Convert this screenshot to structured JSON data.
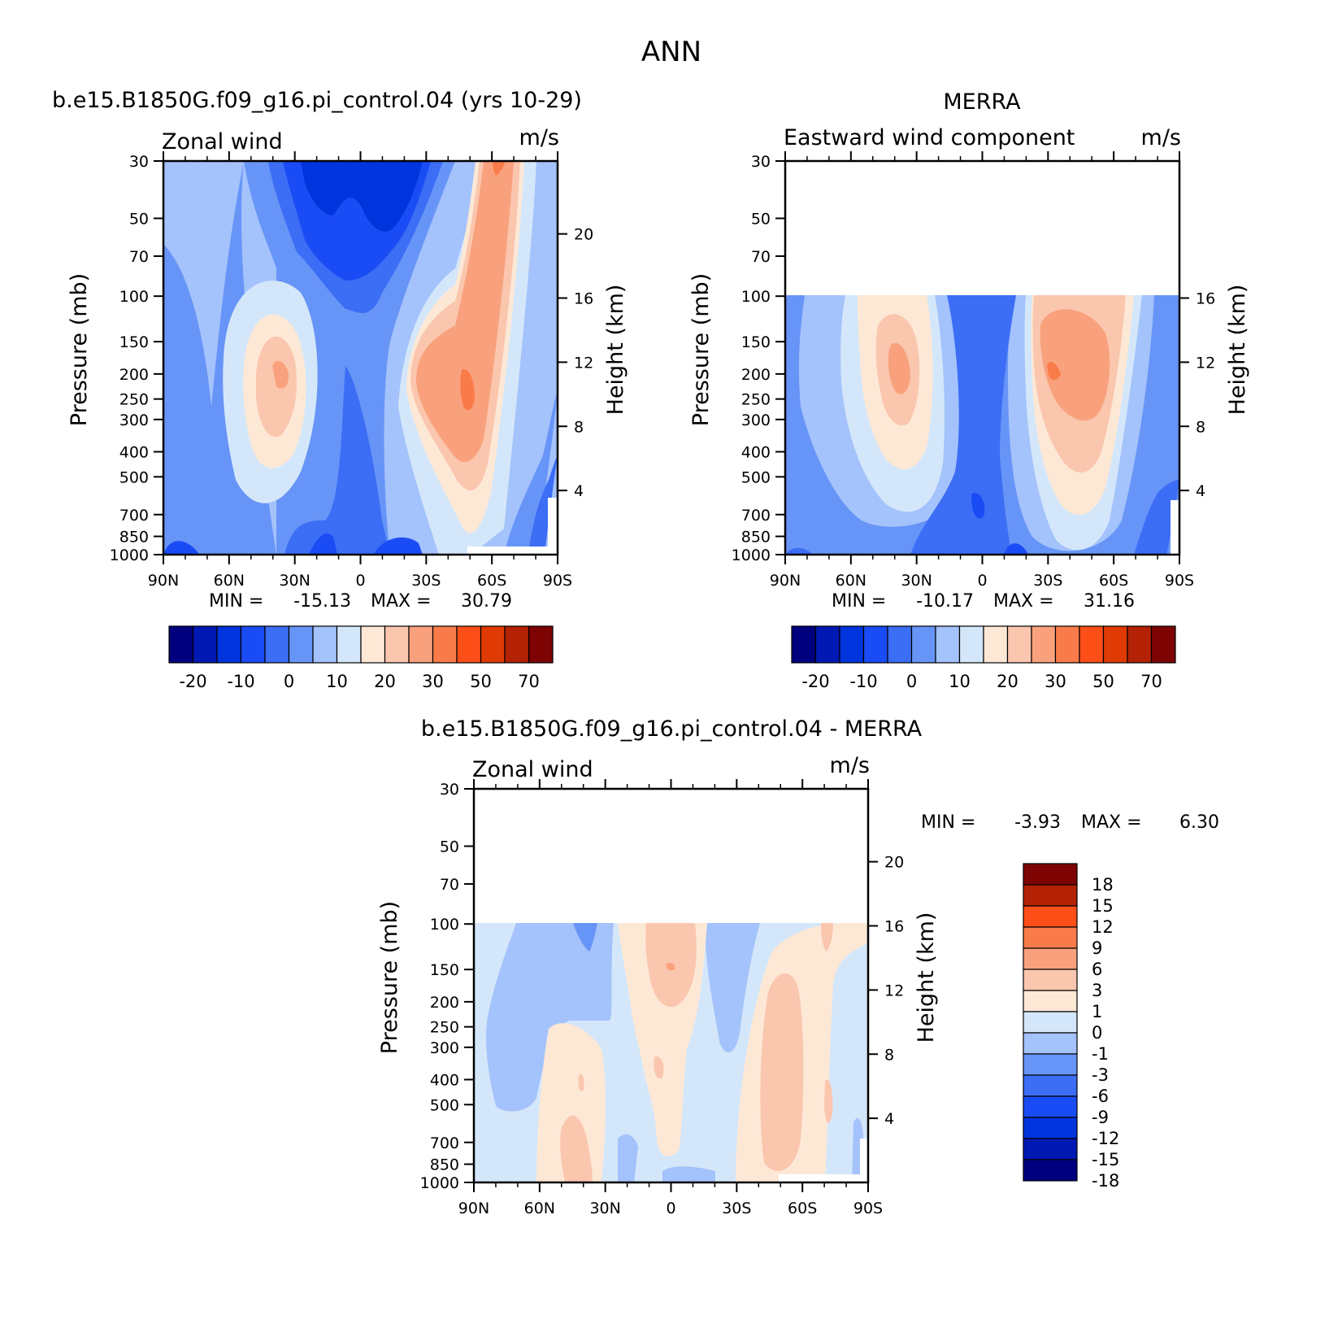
{
  "page": {
    "title": "ANN"
  },
  "colors": {
    "ctrl_scale": [
      "#00007e",
      "#0019b3",
      "#0034dc",
      "#1a4cf5",
      "#3b6df5",
      "#6794f7",
      "#a4c2fb",
      "#d4e7fa",
      "#fde8d6",
      "#fbc6ae",
      "#f9a17d",
      "#fa7b4a",
      "#ff4f19",
      "#e03a05",
      "#b32204",
      "#7e0303"
    ],
    "diff_scale": [
      "#00007e",
      "#0019b3",
      "#0034dc",
      "#1a4cf5",
      "#3b6df5",
      "#6794f7",
      "#a4c2fb",
      "#d4e7fa",
      "#fde8d6",
      "#fbc6ae",
      "#f9a17d",
      "#fa7b4a",
      "#ff4f19",
      "#b32204",
      "#7e0303"
    ]
  },
  "chart_data": [
    {
      "type": "contour",
      "title": "b.e15.B1850G.f09_g16.pi_control.04 (yrs 10-29)",
      "left_string": "Zonal wind",
      "right_string": "m/s",
      "xlabel": "",
      "ylabel": "Pressure (mb)",
      "y2label": "Height (km)",
      "x_ticks": [
        "90N",
        "60N",
        "30N",
        "0",
        "30S",
        "60S",
        "90S"
      ],
      "y_ticks": [
        "30",
        "50",
        "70",
        "100",
        "150",
        "200",
        "250",
        "300",
        "400",
        "500",
        "700",
        "850",
        "1000"
      ],
      "y2_ticks": [
        "20",
        "16",
        "12",
        "8",
        "4"
      ],
      "stats": {
        "min_label": "MIN =",
        "min": "-15.13",
        "max_label": "MAX =",
        "max": "30.79"
      },
      "colorbar": {
        "orientation": "horizontal",
        "labels": [
          "-20",
          "-10",
          "0",
          "10",
          "20",
          "30",
          "50",
          "70"
        ]
      }
    },
    {
      "type": "contour",
      "title": "MERRA",
      "left_string": "Eastward wind component",
      "right_string": "m/s",
      "xlabel": "",
      "ylabel": "Pressure (mb)",
      "y2label": "Height (km)",
      "x_ticks": [
        "90N",
        "60N",
        "30N",
        "0",
        "30S",
        "60S",
        "90S"
      ],
      "y_ticks": [
        "30",
        "50",
        "70",
        "100",
        "150",
        "200",
        "250",
        "300",
        "400",
        "500",
        "700",
        "850",
        "1000"
      ],
      "y2_ticks": [
        "16",
        "12",
        "8",
        "4"
      ],
      "stats": {
        "min_label": "MIN =",
        "min": "-10.17",
        "max_label": "MAX =",
        "max": "31.16"
      },
      "colorbar": {
        "orientation": "horizontal",
        "labels": [
          "-20",
          "-10",
          "0",
          "10",
          "20",
          "30",
          "50",
          "70"
        ]
      }
    },
    {
      "type": "contour",
      "title": "b.e15.B1850G.f09_g16.pi_control.04 - MERRA",
      "left_string": "Zonal wind",
      "right_string": "m/s",
      "xlabel": "",
      "ylabel": "Pressure (mb)",
      "y2label": "Height (km)",
      "x_ticks": [
        "90N",
        "60N",
        "30N",
        "0",
        "30S",
        "60S",
        "90S"
      ],
      "y_ticks": [
        "30",
        "50",
        "70",
        "100",
        "150",
        "200",
        "250",
        "300",
        "400",
        "500",
        "700",
        "850",
        "1000"
      ],
      "y2_ticks": [
        "20",
        "16",
        "12",
        "8",
        "4"
      ],
      "stats": {
        "min_label": "MIN =",
        "min": "-3.93",
        "max_label": "MAX =",
        "max": "6.30"
      },
      "colorbar": {
        "orientation": "vertical",
        "labels": [
          "18",
          "15",
          "12",
          "9",
          "6",
          "3",
          "1",
          "0",
          "-1",
          "-3",
          "-6",
          "-9",
          "-12",
          "-15",
          "-18"
        ]
      }
    }
  ]
}
